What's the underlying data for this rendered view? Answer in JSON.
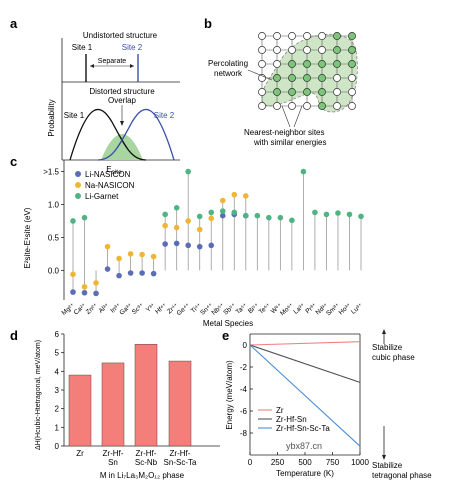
{
  "panel_labels": {
    "a": "a",
    "b": "b",
    "c": "c",
    "d": "d",
    "e": "e"
  },
  "panel_a": {
    "ylabel": "Probability",
    "top_title": "Undistorted structure",
    "site1": "Site 1",
    "site2": "Site 2",
    "separate": "Separate",
    "bottom_title_1": "Distorted structure",
    "bottom_title_2": "Overlap",
    "site1_b": "Site 1",
    "site2_b": "Site 2",
    "xlabel_main": "E",
    "xlabel_sub": "site",
    "colors": {
      "site1": "#111111",
      "site2": "#3a4fa8",
      "overlap": "#a8d5a0"
    }
  },
  "panel_b": {
    "label_percolating": "Percolating",
    "label_network": "network",
    "label_nn_1": "Nearest-neighbor sites",
    "label_nn_2": "with similar energies",
    "colors": {
      "node_active": "#7cc67a",
      "node_empty": "#ffffff",
      "region": "#cfe6c6"
    }
  },
  "panel_c": {
    "ylabel": "E²site-E¹site (eV)",
    "xlabel": "Metal Species",
    "legend": [
      {
        "name": "Li-NASICON",
        "color": "#5b6db5"
      },
      {
        "name": "Na-NASICON",
        "color": "#f0b532"
      },
      {
        "name": "Li-Garnet",
        "color": "#4fb482"
      }
    ],
    "yticks": [
      ">1.5",
      "1.0",
      "0.5",
      "0.0"
    ]
  },
  "panel_d": {
    "ylabel": "ΔH(Hcubic-Htetragonal, meV/atom)",
    "xlabel": "M in Li₇La₃M₂O₁₂ phase",
    "bar_color": "#f47f7a",
    "yticks": [
      "0",
      "1",
      "2",
      "3",
      "4",
      "5",
      "6"
    ]
  },
  "panel_e": {
    "ylabel": "Energy (meV/atom)",
    "xlabel": "Temperature (K)",
    "xticks": [
      "0",
      "250",
      "500",
      "750",
      "1000"
    ],
    "yticks": [
      "0",
      "-2",
      "-4",
      "-6",
      "-8"
    ],
    "annot_top_1": "Stabilize",
    "annot_top_2": "cubic phase",
    "annot_bot_1": "Stabilize",
    "annot_bot_2": "tetragonal phase",
    "watermark": "ybx87.cn"
  },
  "chart_data": [
    {
      "type": "scatter",
      "title": "",
      "xlabel": "Metal Species",
      "ylabel": "E²site-E¹site (eV)",
      "ylim": [
        -0.45,
        1.6
      ],
      "categories": [
        "Mg²⁺",
        "Ca²⁺",
        "Zn²⁺",
        "Al³⁺",
        "In³⁺",
        "Ga³⁺",
        "Sc³⁺",
        "Y³⁺",
        "Hf⁴⁺",
        "Zr⁴⁺",
        "Ge⁴⁺",
        "Ti⁴⁺",
        "Sn⁴⁺",
        "Nb⁵⁺",
        "Sb⁵⁺",
        "Ta⁵⁺",
        "Bi⁵⁺",
        "Te⁶⁺",
        "W⁶⁺",
        "Mo⁶⁺",
        "La³⁺",
        "Pr³⁺",
        "Nd³⁺",
        "Sm³⁺",
        "Ho³⁺",
        "Lu³⁺"
      ],
      "series": [
        {
          "name": "Li-NASICON",
          "values": [
            -0.33,
            -0.34,
            -0.35,
            0.02,
            -0.08,
            -0.04,
            -0.04,
            -0.05,
            0.4,
            0.41,
            0.38,
            0.36,
            0.38,
            0.83,
            0.85,
            0.83,
            null,
            null,
            null,
            null,
            null,
            null,
            null,
            null,
            null,
            null
          ]
        },
        {
          "name": "Na-NASICON",
          "values": [
            -0.06,
            -0.25,
            -0.19,
            0.36,
            0.18,
            0.25,
            0.24,
            0.21,
            0.68,
            0.65,
            0.75,
            0.62,
            0.79,
            1.06,
            1.15,
            1.13,
            null,
            null,
            null,
            null,
            null,
            null,
            null,
            null,
            null,
            null
          ]
        },
        {
          "name": "Li-Garnet",
          "values": [
            0.75,
            0.8,
            null,
            null,
            null,
            null,
            null,
            null,
            0.85,
            0.95,
            1.5,
            0.82,
            0.88,
            0.9,
            0.88,
            0.83,
            0.83,
            0.8,
            0.8,
            0.76,
            1.5,
            0.88,
            0.85,
            0.87,
            0.85,
            0.82
          ]
        }
      ]
    },
    {
      "type": "bar",
      "title": "",
      "xlabel": "M in Li₇La₃M₂O₁₂ phase",
      "ylabel": "ΔH(Hcubic-Htetragonal, meV/atom)",
      "ylim": [
        0,
        6
      ],
      "categories": [
        "Zr",
        "Zr-Hf-Sn",
        "Zr-Hf-Sc-Nb",
        "Zr-Hf-Sn-Sc-Ta"
      ],
      "values": [
        3.8,
        4.45,
        5.45,
        4.55
      ]
    },
    {
      "type": "line",
      "title": "",
      "xlabel": "Temperature (K)",
      "ylabel": "Energy (meV/atom)",
      "xlim": [
        0,
        1000
      ],
      "ylim": [
        -10,
        1
      ],
      "series": [
        {
          "name": "Zr",
          "color": "#f08080",
          "x": [
            0,
            1000
          ],
          "y": [
            0,
            0.3
          ]
        },
        {
          "name": "Zr-Hf-Sn",
          "color": "#555555",
          "x": [
            0,
            1000
          ],
          "y": [
            0,
            -3.4
          ]
        },
        {
          "name": "Zr-Hf-Sn-Sc-Ta",
          "color": "#4d8fd6",
          "x": [
            0,
            1000
          ],
          "y": [
            0,
            -9.2
          ]
        }
      ]
    }
  ]
}
